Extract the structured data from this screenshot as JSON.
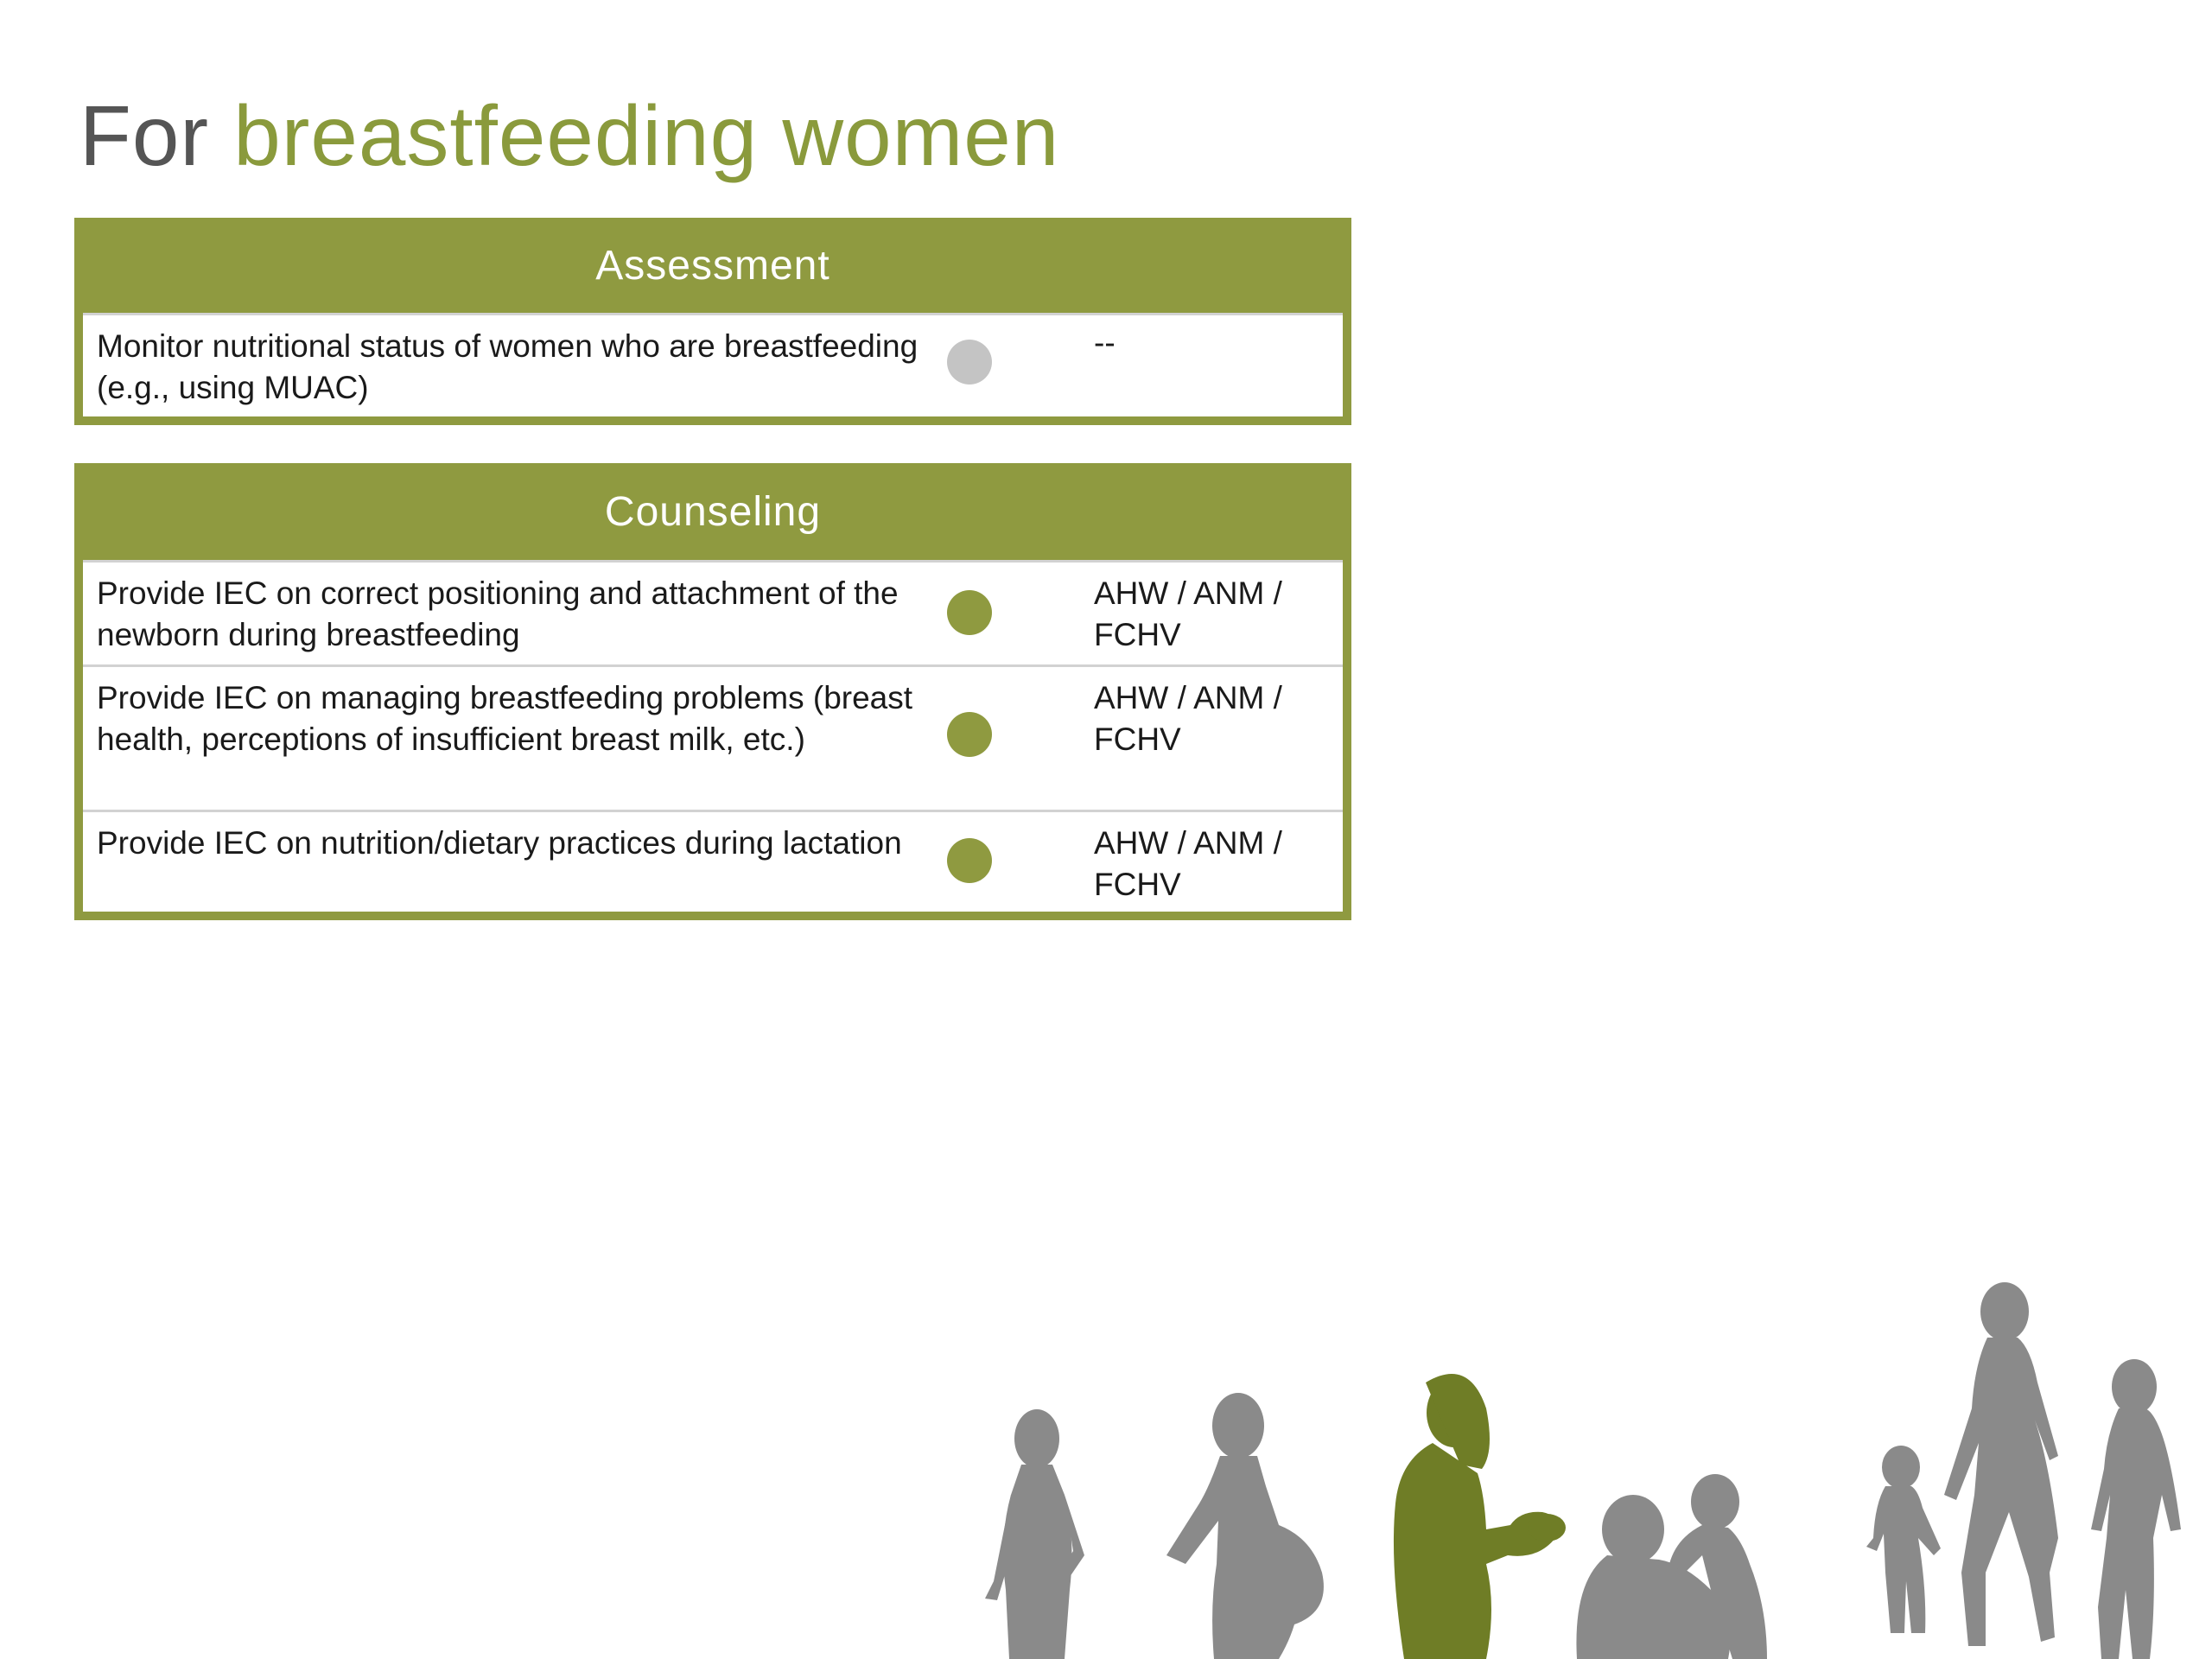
{
  "title": {
    "lead": "For",
    "accent": "breastfeeding women"
  },
  "assessment": {
    "header": "Assessment",
    "rows": [
      {
        "description": "Monitor nutritional status of women who are breastfeeding  (e.g., using MUAC)",
        "status": "inactive",
        "provider": "--"
      }
    ]
  },
  "counseling": {
    "header": "Counseling",
    "rows": [
      {
        "description": "Provide IEC on correct positioning and attachment of the newborn during breastfeeding",
        "status": "active",
        "provider": "AHW / ANM / FCHV"
      },
      {
        "description": "Provide IEC on managing breastfeeding problems (breast health, perceptions of insufficient breast milk, etc.)",
        "status": "active",
        "provider": "AHW / ANM / FCHV"
      },
      {
        "description": "Provide IEC on nutrition/dietary practices during lactation",
        "status": "active",
        "provider": "AHW / ANM / FCHV"
      }
    ]
  },
  "colors": {
    "accent": "#8f9a40",
    "title_accent": "#8a9a3c",
    "dot_active": "#8f9a40",
    "dot_inactive": "#c4c4c4",
    "silhouette_gray": "#8a8a8a",
    "silhouette_highlight": "#6f7d26"
  },
  "icons": {
    "active_dot": "filled-circle-icon",
    "inactive_dot": "gray-circle-icon",
    "illustration": "life-stage-silhouettes"
  }
}
